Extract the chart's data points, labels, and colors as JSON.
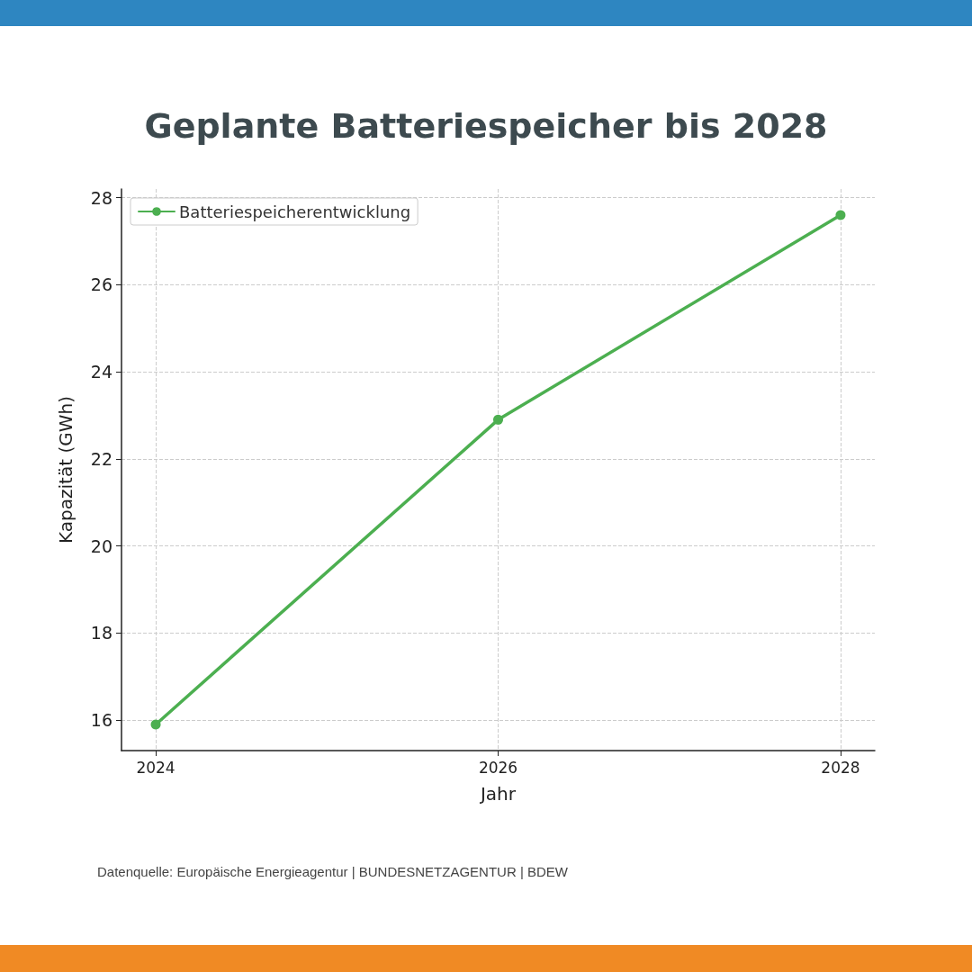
{
  "chart_data": {
    "type": "line",
    "title": "Geplante Batteriespeicher bis 2028",
    "xlabel": "Jahr",
    "ylabel": "Kapazität (GWh)",
    "annotations": [
      "Datenquelle: Europäische Energieagentur | BUNDESNETZAGENTUR | BDEW"
    ],
    "x": [
      2024,
      2026,
      2028
    ],
    "series": [
      {
        "name": "Batteriespeicherentwicklung",
        "color": "#4caf50",
        "values": [
          15.9,
          22.9,
          27.6
        ]
      }
    ],
    "xlim": [
      2023.8,
      2028.2
    ],
    "xticks": [
      2024,
      2026,
      2028
    ],
    "ylim": [
      15.3,
      28.2
    ],
    "yticks": [
      16,
      18,
      20,
      22,
      24,
      26,
      28
    ],
    "grid": true,
    "legend": "top left",
    "marker": "circle",
    "line_style": "solid"
  }
}
